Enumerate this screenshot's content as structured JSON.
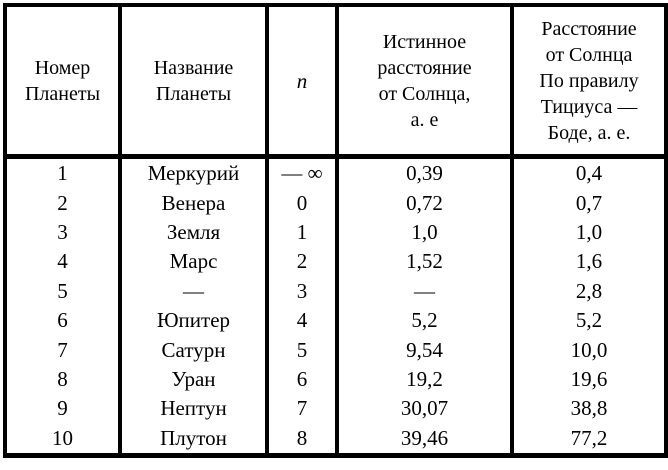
{
  "page": {
    "background_color": "#ffffff",
    "line_color": "#000000",
    "text_color": "#000000"
  },
  "table": {
    "title": "planets-titius-bode-table",
    "columns": [
      {
        "label": "Номер\nПланеты"
      },
      {
        "label": "Название\nПланеты"
      },
      {
        "label": "n",
        "italic": true
      },
      {
        "label": "Истинное\nрасстояние\nот Солнца,\nа. е"
      },
      {
        "label": "Расстояние\nот Солнца\nПо правилу\nТициуса —\nБоде, а. е."
      }
    ],
    "rows": [
      {
        "cells": [
          "1",
          "Меркурий",
          "— ∞",
          "0,39",
          "0,4"
        ]
      },
      {
        "cells": [
          "2",
          "Венера",
          "0",
          "0,72",
          "0,7"
        ]
      },
      {
        "cells": [
          "3",
          "Земля",
          "1",
          "1,0",
          "1,0"
        ]
      },
      {
        "cells": [
          "4",
          "Марс",
          "2",
          "1,52",
          "1,6"
        ]
      },
      {
        "cells": [
          "5",
          "—",
          "3",
          "—",
          "2,8"
        ]
      },
      {
        "cells": [
          "6",
          "Юпитер",
          "4",
          "5,2",
          "5,2"
        ]
      },
      {
        "cells": [
          "7",
          "Сатурн",
          "5",
          "9,54",
          "10,0"
        ]
      },
      {
        "cells": [
          "8",
          "Уран",
          "6",
          "19,2",
          "19,6"
        ]
      },
      {
        "cells": [
          "9",
          "Нептун",
          "7",
          "30,07",
          "38,8"
        ]
      },
      {
        "cells": [
          "10",
          "Плутон",
          "8",
          "39,46",
          "77,2"
        ]
      }
    ]
  }
}
